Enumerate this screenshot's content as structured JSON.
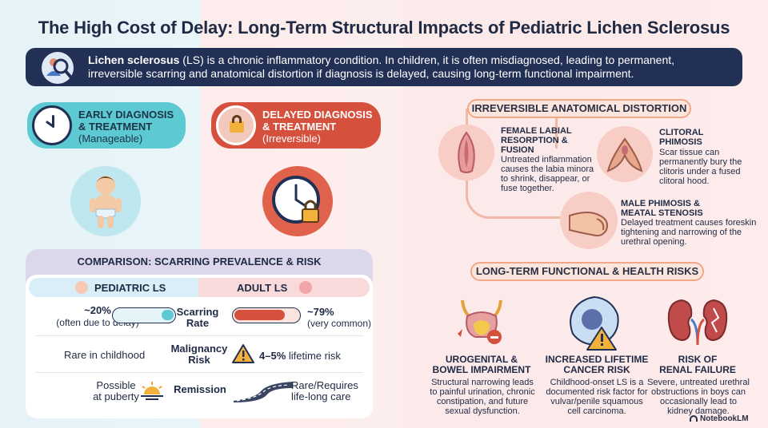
{
  "title": "The High Cost of Delay: Long-Term Structural Impacts of Pediatric Lichen Sclerosus",
  "banner": {
    "term": "Lichen sclerosus",
    "rest_line1": " (LS) is a chronic inflammatory condition. In children, it is often misdiagnosed, leading to permanent,",
    "line2": "irreversible scarring and anatomical distortion if diagnosis is delayed, causing long-term functional impairment.",
    "icon": "doctor-magnifier-icon"
  },
  "early": {
    "line1": "EARLY DIAGNOSIS",
    "line2": "& TREATMENT",
    "line3": "(Manageable)",
    "color": "#5cc9d3"
  },
  "delayed": {
    "line1": "DELAYED DIAGNOSIS",
    "line2": "& TREATMENT",
    "line3": "(Irreversible)",
    "color": "#d5503d"
  },
  "comparison": {
    "title": "COMPARISON: SCARRING PREVALENCE & RISK",
    "pediatric_header": "PEDIATRIC LS",
    "adult_header": "ADULT LS",
    "rows": [
      {
        "label_line1": "Scarring",
        "label_line2": "Rate",
        "ped_value": "~20%",
        "ped_note": "(often due to delay)",
        "ped_fill": 0.2,
        "adult_value": "~79%",
        "adult_note": "(very common)",
        "adult_fill": 0.79
      },
      {
        "label_line1": "Malignancy",
        "label_line2": "Risk",
        "ped_text": "Rare in childhood",
        "adult_strong": "4–5%",
        "adult_rest": " lifetime risk"
      },
      {
        "label_line1": "Remission",
        "ped_line1": "Possible",
        "ped_line2": "at puberty",
        "adult_line1": "Rare/Requires",
        "adult_line2": "life-long care"
      }
    ]
  },
  "anatomy": {
    "section_title": "IRREVERSIBLE ANATOMICAL DISTORTION",
    "items": [
      {
        "heading": [
          "FEMALE LABIAL",
          "RESORPTION &",
          "FUSION"
        ],
        "body": [
          "Untreated inflammation",
          "causes the labia minora",
          "to shrink, disappear, or",
          "fuse together."
        ]
      },
      {
        "heading": [
          "CLITORAL",
          "PHIMOSIS"
        ],
        "body": [
          "Scar tissue can",
          "permanently bury the",
          "clitoris under a fused",
          "clitoral hood."
        ]
      },
      {
        "heading": [
          "MALE PHIMOSIS &",
          "MEATAL STENOSIS"
        ],
        "body": [
          "Delayed treatment causes foreskin",
          "tightening and narrowing of the",
          "urethral opening."
        ]
      }
    ]
  },
  "risks": {
    "section_title": "LONG-TERM FUNCTIONAL & HEALTH RISKS",
    "items": [
      {
        "heading": [
          "UROGENITAL &",
          "BOWEL IMPAIRMENT"
        ],
        "body": [
          "Structural narrowing leads",
          "to painful urination, chronic",
          "constipation, and future",
          "sexual dysfunction."
        ],
        "icon": "bladder-icon"
      },
      {
        "heading": [
          "INCREASED LIFETIME",
          "CANCER RISK"
        ],
        "body": [
          "Childhood-onset LS is a",
          "documented risk factor for",
          "vulvar/penile squamous",
          "cell carcinoma."
        ],
        "icon": "cell-warning-icon"
      },
      {
        "heading": [
          "RISK OF",
          "RENAL FAILURE"
        ],
        "body": [
          "Severe, untreated urethral",
          "obstructions in boys can",
          "occasionally lead to",
          "kidney damage."
        ],
        "icon": "kidney-icon"
      }
    ]
  },
  "footer": {
    "brand": "NotebookLM"
  }
}
